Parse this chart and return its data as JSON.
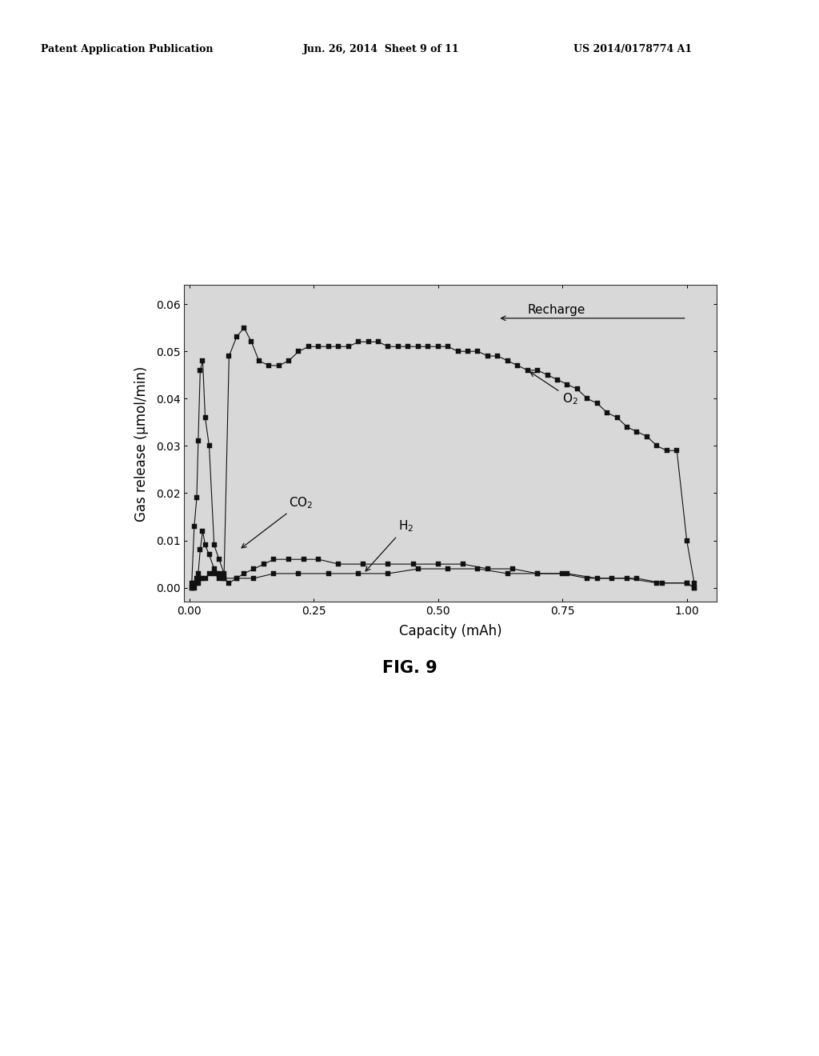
{
  "header_left": "Patent Application Publication",
  "header_center": "Jun. 26, 2014  Sheet 9 of 11",
  "header_right": "US 2014/0178774 A1",
  "fig_label": "FIG. 9",
  "xlabel": "Capacity (mAh)",
  "ylabel": "Gas release (μmol/min)",
  "xlim": [
    -0.01,
    1.06
  ],
  "ylim": [
    -0.003,
    0.064
  ],
  "xticks": [
    0.0,
    0.25,
    0.5,
    0.75,
    1.0
  ],
  "yticks": [
    0.0,
    0.01,
    0.02,
    0.03,
    0.04,
    0.05,
    0.06
  ],
  "background_color": "#ffffff",
  "plot_bg_color": "#d8d8d8",
  "O2_x": [
    0.005,
    0.01,
    0.015,
    0.018,
    0.022,
    0.027,
    0.032,
    0.04,
    0.05,
    0.06,
    0.07,
    0.08,
    0.095,
    0.11,
    0.125,
    0.14,
    0.16,
    0.18,
    0.2,
    0.22,
    0.24,
    0.26,
    0.28,
    0.3,
    0.32,
    0.34,
    0.36,
    0.38,
    0.4,
    0.42,
    0.44,
    0.46,
    0.48,
    0.5,
    0.52,
    0.54,
    0.56,
    0.58,
    0.6,
    0.62,
    0.64,
    0.66,
    0.68,
    0.7,
    0.72,
    0.74,
    0.76,
    0.78,
    0.8,
    0.82,
    0.84,
    0.86,
    0.88,
    0.9,
    0.92,
    0.94,
    0.96,
    0.98,
    1.0,
    1.015
  ],
  "O2_y": [
    0.001,
    0.013,
    0.019,
    0.031,
    0.046,
    0.048,
    0.036,
    0.03,
    0.009,
    0.006,
    0.003,
    0.049,
    0.053,
    0.055,
    0.052,
    0.048,
    0.047,
    0.047,
    0.048,
    0.05,
    0.051,
    0.051,
    0.051,
    0.051,
    0.051,
    0.052,
    0.052,
    0.052,
    0.051,
    0.051,
    0.051,
    0.051,
    0.051,
    0.051,
    0.051,
    0.05,
    0.05,
    0.05,
    0.049,
    0.049,
    0.048,
    0.047,
    0.046,
    0.046,
    0.045,
    0.044,
    0.043,
    0.042,
    0.04,
    0.039,
    0.037,
    0.036,
    0.034,
    0.033,
    0.032,
    0.03,
    0.029,
    0.029,
    0.01,
    0.001
  ],
  "CO2_x": [
    0.005,
    0.01,
    0.015,
    0.018,
    0.022,
    0.027,
    0.032,
    0.04,
    0.05,
    0.06,
    0.07,
    0.08,
    0.095,
    0.11,
    0.13,
    0.15,
    0.17,
    0.2,
    0.23,
    0.26,
    0.3,
    0.35,
    0.4,
    0.45,
    0.5,
    0.55,
    0.6,
    0.65,
    0.7,
    0.75,
    0.8,
    0.85,
    0.9,
    0.95,
    1.0,
    1.015
  ],
  "CO2_y": [
    0.0,
    0.001,
    0.002,
    0.003,
    0.008,
    0.012,
    0.009,
    0.007,
    0.004,
    0.003,
    0.002,
    0.001,
    0.002,
    0.003,
    0.004,
    0.005,
    0.006,
    0.006,
    0.006,
    0.006,
    0.005,
    0.005,
    0.005,
    0.005,
    0.005,
    0.005,
    0.004,
    0.004,
    0.003,
    0.003,
    0.002,
    0.002,
    0.002,
    0.001,
    0.001,
    0.0
  ],
  "H2_x": [
    0.005,
    0.01,
    0.015,
    0.018,
    0.022,
    0.027,
    0.032,
    0.04,
    0.05,
    0.06,
    0.07,
    0.095,
    0.13,
    0.17,
    0.22,
    0.28,
    0.34,
    0.4,
    0.46,
    0.52,
    0.58,
    0.64,
    0.7,
    0.76,
    0.82,
    0.88,
    0.94,
    1.0,
    1.015
  ],
  "H2_y": [
    0.0,
    0.0,
    0.001,
    0.001,
    0.002,
    0.002,
    0.002,
    0.003,
    0.003,
    0.002,
    0.002,
    0.002,
    0.002,
    0.003,
    0.003,
    0.003,
    0.003,
    0.003,
    0.004,
    0.004,
    0.004,
    0.003,
    0.003,
    0.003,
    0.002,
    0.002,
    0.001,
    0.001,
    0.0
  ],
  "marker_color": "#111111",
  "line_color": "#111111",
  "marker_size": 4,
  "font_size_axis_label": 12,
  "font_size_tick": 10,
  "font_size_annotation": 11,
  "font_size_header": 9,
  "font_size_fig_label": 15
}
